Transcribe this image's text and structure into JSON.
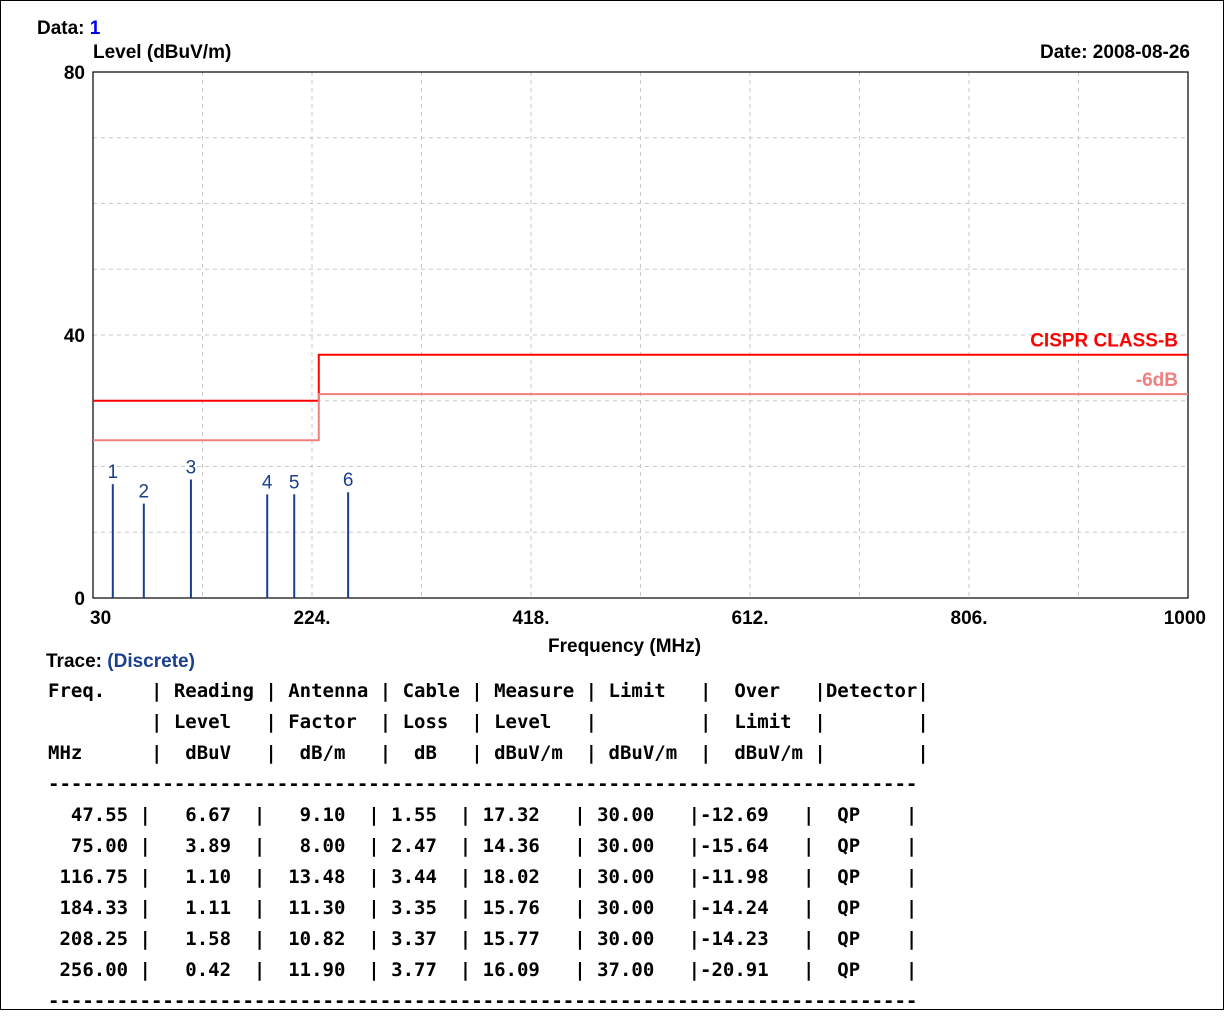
{
  "header": {
    "data_label": "Data:",
    "data_value": "1",
    "ylabel": "Level (dBuV/m)",
    "date": "Date: 2008-08-26"
  },
  "chart_data": {
    "type": "bar",
    "xlabel": "Frequency (MHz)",
    "ylabel": "Level (dBuV/m)",
    "xlim": [
      30,
      1000
    ],
    "ylim": [
      0,
      80
    ],
    "x_ticks": [
      "30",
      "224.",
      "418.",
      "612.",
      "806.",
      "1000"
    ],
    "y_ticks": [
      "0",
      "40",
      "80"
    ],
    "grid": true,
    "series": [
      {
        "name": "CISPR CLASS-B",
        "type": "step-line",
        "color": "#ff0000",
        "points": [
          [
            30,
            30
          ],
          [
            230,
            30
          ],
          [
            230,
            37
          ],
          [
            1000,
            37
          ]
        ]
      },
      {
        "name": "-6dB",
        "type": "step-line",
        "color": "#f08080",
        "points": [
          [
            30,
            24
          ],
          [
            230,
            24
          ],
          [
            230,
            31
          ],
          [
            1000,
            31
          ]
        ]
      }
    ],
    "markers": [
      {
        "label": "1",
        "x": 47.55,
        "y": 17.32
      },
      {
        "label": "2",
        "x": 75.0,
        "y": 14.36
      },
      {
        "label": "3",
        "x": 116.75,
        "y": 18.02
      },
      {
        "label": "4",
        "x": 184.33,
        "y": 15.76
      },
      {
        "label": "5",
        "x": 208.25,
        "y": 15.77
      },
      {
        "label": "6",
        "x": 256.0,
        "y": 16.09
      }
    ],
    "marker_color": "#1a3f8f"
  },
  "trace": {
    "label": "Trace:",
    "value": "(Discrete)"
  },
  "table": {
    "header_lines": [
      "Freq.    | Reading | Antenna | Cable | Measure | Limit   |  Over   |Detector|",
      "         | Level   | Factor  | Loss  | Level   |         |  Limit  |        |",
      "MHz      |  dBuV   |  dB/m   |  dB   | dBuV/m  | dBuV/m  |  dBuV/m |        |"
    ],
    "separator": "----------------------------------------------------------------------------",
    "rows": [
      "  47.55 |   6.67  |   9.10  | 1.55  | 17.32   | 30.00   |-12.69   |  QP    |",
      "  75.00 |   3.89  |   8.00  | 2.47  | 14.36   | 30.00   |-15.64   |  QP    |",
      " 116.75 |   1.10  |  13.48  | 3.44  | 18.02   | 30.00   |-11.98   |  QP    |",
      " 184.33 |   1.11  |  11.30  | 3.35  | 15.76   | 30.00   |-14.24   |  QP    |",
      " 208.25 |   1.58  |  10.82  | 3.37  | 15.77   | 30.00   |-14.23   |  QP    |",
      " 256.00 |   0.42  |  11.90  | 3.77  | 16.09   | 37.00   |-20.91   |  QP    |"
    ],
    "footer": "----------------------------------------------------------------------------"
  }
}
